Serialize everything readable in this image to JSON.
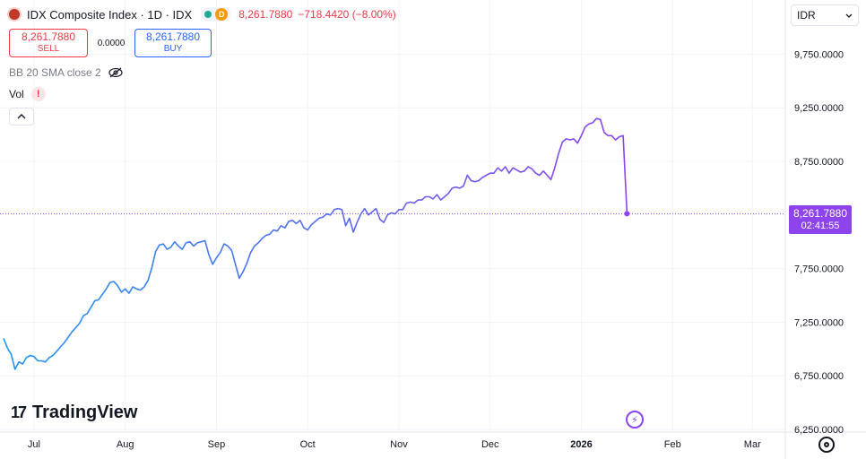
{
  "header": {
    "title": "IDX Composite Index · 1D · IDX",
    "badge_letter": "D",
    "last_price": "8,261.7880",
    "change": "−718.4420 (−8.00%)"
  },
  "trade": {
    "sell_price": "8,261.7880",
    "sell_label": "SELL",
    "spread": "0.0000",
    "buy_price": "8,261.7880",
    "buy_label": "BUY"
  },
  "indicators": {
    "bb_label": "BB 20 SMA close 2",
    "vol_label": "Vol",
    "vol_warning": "!"
  },
  "currency": {
    "value": "IDR"
  },
  "price_tag": {
    "price": "8,261.7880",
    "countdown": "02:41:55"
  },
  "brand": {
    "name": "TradingView",
    "mark": "17"
  },
  "colors": {
    "line_start": "#2196f3",
    "line_end": "#8e44ec",
    "down": "#f23645",
    "up": "#2962ff"
  },
  "chart_data": {
    "type": "line",
    "y_ticks": [
      "9,750.0000",
      "9,250.0000",
      "8,750.0000",
      "7,750.0000",
      "7,250.0000",
      "6,750.0000",
      "6,250.0000"
    ],
    "y_tick_values": [
      9750,
      9250,
      8750,
      7750,
      7250,
      6750,
      6250
    ],
    "x_ticks": [
      "Jul",
      "Aug",
      "Sep",
      "Oct",
      "Nov",
      "Dec",
      "2026",
      "Feb",
      "Mar"
    ],
    "x_tick_index": [
      8,
      32,
      56,
      80,
      104,
      128,
      152,
      176,
      197
    ],
    "last_value": 8261.788,
    "series": [
      {
        "values": [
          7100,
          7010,
          6950,
          6810,
          6880,
          6860,
          6920,
          6940,
          6930,
          6890,
          6890,
          6880,
          6920,
          6940,
          6980,
          7020,
          7060,
          7110,
          7160,
          7200,
          7240,
          7310,
          7330,
          7390,
          7450,
          7460,
          7510,
          7560,
          7620,
          7630,
          7590,
          7530,
          7560,
          7520,
          7580,
          7560,
          7550,
          7580,
          7640,
          7760,
          7910,
          7970,
          7980,
          7930,
          7950,
          8000,
          7960,
          7930,
          7990,
          8000,
          7960,
          7990,
          8000,
          8010,
          7880,
          7790,
          7850,
          7900,
          7980,
          7960,
          7920,
          7790,
          7660,
          7720,
          7800,
          7900,
          7960,
          7990,
          8030,
          8060,
          8070,
          8110,
          8100,
          8150,
          8130,
          8190,
          8200,
          8170,
          8200,
          8130,
          8110,
          8160,
          8190,
          8220,
          8230,
          8260,
          8250,
          8300,
          8310,
          8300,
          8150,
          8220,
          8090,
          8180,
          8260,
          8310,
          8250,
          8280,
          8310,
          8210,
          8180,
          8250,
          8270,
          8260,
          8300,
          8300,
          8360,
          8370,
          8360,
          8390,
          8390,
          8420,
          8420,
          8400,
          8440,
          8390,
          8420,
          8450,
          8500,
          8510,
          8500,
          8520,
          8620,
          8570,
          8560,
          8570,
          8600,
          8620,
          8640,
          8640,
          8690,
          8660,
          8700,
          8640,
          8690,
          8670,
          8650,
          8660,
          8700,
          8680,
          8640,
          8620,
          8660,
          8620,
          8580,
          8690,
          8820,
          8930,
          8960,
          8950,
          8960,
          8920,
          8990,
          9070,
          9100,
          9110,
          9150,
          9140,
          9020,
          8990,
          8990,
          8950,
          8980,
          8990,
          8261.788
        ]
      }
    ],
    "grid": true,
    "legend": "none"
  }
}
